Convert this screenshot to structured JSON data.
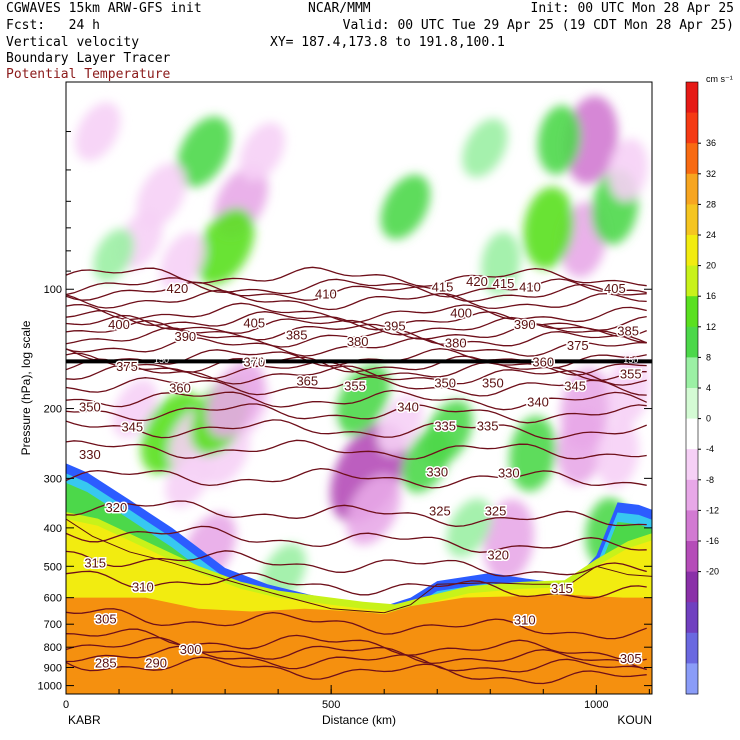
{
  "header": {
    "left1": "CGWAVES 15km ARW-GFS init",
    "left2": "Fcst:   24 h",
    "left3": "Vertical velocity",
    "left4": "Boundary Layer Tracer",
    "left5": "Potential Temperature",
    "center1": "NCAR/MMM",
    "init": "Init: 00 UTC Mon 28 Apr 25",
    "valid": "Valid: 00 UTC Tue 29 Apr 25 (19 CDT Mon 28 Apr 25)",
    "xy": "XY= 187.4,173.8 to 191.8,100.1"
  },
  "colors": {
    "theta_line": "#6e0f1a",
    "tracer_blue": "#2c5cff",
    "tracer_cyan": "#37c8f0",
    "surface_orange": "#f5900f",
    "surface_yellow": "#f2ec10"
  },
  "chart_data": {
    "type": "heatmap",
    "ylabel": "Pressure (hPa), log scale",
    "xlabel": "Distance (km)",
    "x_ticks": [
      "0",
      "500",
      "1000"
    ],
    "x_tick_values": [
      0,
      500,
      1000
    ],
    "xlim": [
      0,
      1105
    ],
    "y_ticks": [
      "100",
      "200",
      "300",
      "400",
      "500",
      "600",
      "700",
      "800",
      "900",
      "1000"
    ],
    "y_tick_values": [
      100,
      200,
      300,
      400,
      500,
      600,
      700,
      800,
      900,
      1000
    ],
    "ylim": [
      1050,
      30
    ],
    "y_scale": "log",
    "endpoints": [
      "KABR",
      "KOUN"
    ],
    "colorbar": {
      "unit": "cm s⁻¹",
      "labels": [
        "36",
        "32",
        "28",
        "24",
        "20",
        "16",
        "12",
        "8",
        "4",
        "0",
        "-4",
        "-8",
        "-12",
        "-16",
        "-20"
      ],
      "bin_colors": [
        "#e61a16",
        "#f53a14",
        "#f86a12",
        "#f7a520",
        "#f5c520",
        "#f2ec10",
        "#c8f21a",
        "#5ae020",
        "#4cd84a",
        "#9bf0a4",
        "#d4fbd4",
        "#ffffff",
        "#f6d0f6",
        "#e8a8e8",
        "#d27ad2",
        "#b54cb8",
        "#8a30a8",
        "#7040c0",
        "#6a68e0",
        "#8a9cf8"
      ]
    },
    "theta_labels": [
      {
        "text": "420",
        "x": 210,
        "p": 100
      },
      {
        "text": "410",
        "x": 490,
        "p": 103
      },
      {
        "text": "415",
        "x": 710,
        "p": 99
      },
      {
        "text": "420",
        "x": 775,
        "p": 96
      },
      {
        "text": "415",
        "x": 825,
        "p": 97
      },
      {
        "text": "410",
        "x": 875,
        "p": 99
      },
      {
        "text": "405",
        "x": 1035,
        "p": 100
      },
      {
        "text": "400",
        "x": 100,
        "p": 123
      },
      {
        "text": "390",
        "x": 225,
        "p": 132
      },
      {
        "text": "405",
        "x": 355,
        "p": 122
      },
      {
        "text": "385",
        "x": 435,
        "p": 131
      },
      {
        "text": "395",
        "x": 620,
        "p": 124
      },
      {
        "text": "400",
        "x": 745,
        "p": 115
      },
      {
        "text": "390",
        "x": 865,
        "p": 123
      },
      {
        "text": "385",
        "x": 1060,
        "p": 128
      },
      {
        "text": "380",
        "x": 550,
        "p": 136
      },
      {
        "text": "380",
        "x": 735,
        "p": 137
      },
      {
        "text": "375",
        "x": 965,
        "p": 139
      },
      {
        "text": "375",
        "x": 115,
        "p": 157
      },
      {
        "text": "370",
        "x": 355,
        "p": 153
      },
      {
        "text": "360",
        "x": 900,
        "p": 153
      },
      {
        "text": "365",
        "x": 455,
        "p": 171
      },
      {
        "text": "355",
        "x": 545,
        "p": 176
      },
      {
        "text": "350",
        "x": 715,
        "p": 173
      },
      {
        "text": "350",
        "x": 805,
        "p": 173
      },
      {
        "text": "355",
        "x": 1065,
        "p": 164
      },
      {
        "text": "360",
        "x": 215,
        "p": 178
      },
      {
        "text": "345",
        "x": 960,
        "p": 176
      },
      {
        "text": "340",
        "x": 890,
        "p": 193
      },
      {
        "text": "350",
        "x": 45,
        "p": 199
      },
      {
        "text": "340",
        "x": 645,
        "p": 199
      },
      {
        "text": "345",
        "x": 125,
        "p": 223
      },
      {
        "text": "335",
        "x": 715,
        "p": 222
      },
      {
        "text": "335",
        "x": 795,
        "p": 222
      },
      {
        "text": "330",
        "x": 45,
        "p": 262
      },
      {
        "text": "330",
        "x": 700,
        "p": 290
      },
      {
        "text": "330",
        "x": 835,
        "p": 292
      },
      {
        "text": "320",
        "x": 95,
        "p": 356
      },
      {
        "text": "325",
        "x": 705,
        "p": 364
      },
      {
        "text": "325",
        "x": 810,
        "p": 364
      },
      {
        "text": "320",
        "x": 815,
        "p": 470
      },
      {
        "text": "315",
        "x": 55,
        "p": 492
      },
      {
        "text": "310",
        "x": 145,
        "p": 565
      },
      {
        "text": "315",
        "x": 935,
        "p": 570
      },
      {
        "text": "305",
        "x": 75,
        "p": 682
      },
      {
        "text": "310",
        "x": 865,
        "p": 685
      },
      {
        "text": "300",
        "x": 235,
        "p": 812
      },
      {
        "text": "290",
        "x": 170,
        "p": 880
      },
      {
        "text": "285",
        "x": 75,
        "p": 880
      },
      {
        "text": "305",
        "x": 1065,
        "p": 856
      }
    ],
    "marker_labels": [
      {
        "text": "150",
        "x": 180,
        "p": 151
      },
      {
        "text": "150",
        "x": 360,
        "p": 151
      },
      {
        "text": "150",
        "x": 1065,
        "p": 151
      }
    ],
    "theta_levels": [
      285,
      290,
      295,
      300,
      305,
      310,
      315,
      320,
      325,
      330,
      335,
      340,
      345,
      350,
      355,
      360,
      365,
      370,
      375,
      380,
      385,
      390,
      395,
      400,
      405,
      410,
      415,
      420,
      425
    ],
    "theta_level_pressures": [
      920,
      870,
      830,
      790,
      700,
      560,
      495,
      430,
      370,
      300,
      255,
      226,
      205,
      190,
      176,
      165,
      160,
      155,
      149,
      140,
      133,
      128,
      124,
      120,
      115,
      107,
      102,
      99,
      93
    ],
    "tropopause_pressure": 152,
    "terrain_pressure": [
      [
        0,
        380
      ],
      [
        50,
        420
      ],
      [
        120,
        460
      ],
      [
        200,
        490
      ],
      [
        300,
        540
      ],
      [
        400,
        590
      ],
      [
        500,
        640
      ],
      [
        600,
        655
      ],
      [
        650,
        625
      ],
      [
        700,
        555
      ],
      [
        800,
        550
      ],
      [
        880,
        555
      ],
      [
        950,
        555
      ],
      [
        1000,
        500
      ],
      [
        1060,
        525
      ],
      [
        1105,
        530
      ]
    ],
    "blh_top_pressure": [
      [
        0,
        275
      ],
      [
        40,
        290
      ],
      [
        120,
        340
      ],
      [
        200,
        400
      ],
      [
        260,
        460
      ],
      [
        300,
        505
      ],
      [
        380,
        555
      ],
      [
        460,
        590
      ],
      [
        540,
        620
      ],
      [
        600,
        630
      ],
      [
        650,
        600
      ],
      [
        700,
        545
      ],
      [
        800,
        520
      ],
      [
        880,
        540
      ],
      [
        950,
        555
      ],
      [
        1000,
        470
      ],
      [
        1040,
        345
      ],
      [
        1080,
        350
      ],
      [
        1105,
        360
      ]
    ],
    "orange_top_pressure": [
      [
        0,
        600
      ],
      [
        150,
        600
      ],
      [
        250,
        640
      ],
      [
        350,
        650
      ],
      [
        450,
        640
      ],
      [
        550,
        650
      ],
      [
        600,
        660
      ],
      [
        650,
        630
      ],
      [
        750,
        600
      ],
      [
        850,
        595
      ],
      [
        950,
        590
      ],
      [
        1050,
        600
      ],
      [
        1105,
        600
      ]
    ],
    "yellow_top_pressure": [
      [
        0,
        380
      ],
      [
        60,
        395
      ],
      [
        150,
        450
      ],
      [
        250,
        520
      ],
      [
        330,
        570
      ],
      [
        400,
        600
      ],
      [
        480,
        620
      ],
      [
        560,
        640
      ],
      [
        620,
        650
      ],
      [
        680,
        620
      ],
      [
        760,
        585
      ],
      [
        860,
        570
      ],
      [
        940,
        565
      ],
      [
        1000,
        500
      ],
      [
        1060,
        450
      ],
      [
        1105,
        430
      ]
    ],
    "w_cells": [
      {
        "x": 330,
        "p": 60,
        "v": -10
      },
      {
        "x": 300,
        "p": 78,
        "v": 12
      },
      {
        "x": 260,
        "p": 45,
        "v": 10
      },
      {
        "x": 180,
        "p": 58,
        "v": -8
      },
      {
        "x": 140,
        "p": 75,
        "v": -6
      },
      {
        "x": 220,
        "p": 85,
        "v": -6
      },
      {
        "x": 370,
        "p": 45,
        "v": -6
      },
      {
        "x": 990,
        "p": 42,
        "v": -14
      },
      {
        "x": 975,
        "p": 75,
        "v": -10
      },
      {
        "x": 1035,
        "p": 62,
        "v": 10
      },
      {
        "x": 910,
        "p": 70,
        "v": 12
      },
      {
        "x": 1060,
        "p": 50,
        "v": -6
      },
      {
        "x": 790,
        "p": 44,
        "v": 6
      },
      {
        "x": 640,
        "p": 62,
        "v": 8
      },
      {
        "x": 820,
        "p": 86,
        "v": 6
      },
      {
        "x": 930,
        "p": 42,
        "v": 8
      },
      {
        "x": 60,
        "p": 40,
        "v": -6
      },
      {
        "x": 90,
        "p": 82,
        "v": 4
      },
      {
        "x": 460,
        "p": 60,
        "v": -4
      },
      {
        "x": 570,
        "p": 290,
        "v": -20
      },
      {
        "x": 580,
        "p": 360,
        "v": -10
      },
      {
        "x": 835,
        "p": 430,
        "v": -12
      },
      {
        "x": 880,
        "p": 260,
        "v": 10
      },
      {
        "x": 970,
        "p": 250,
        "v": -10
      },
      {
        "x": 1040,
        "p": 260,
        "v": -8
      },
      {
        "x": 300,
        "p": 260,
        "v": -8
      },
      {
        "x": 340,
        "p": 200,
        "v": -6
      },
      {
        "x": 230,
        "p": 300,
        "v": -6
      },
      {
        "x": 680,
        "p": 270,
        "v": 8
      },
      {
        "x": 760,
        "p": 400,
        "v": 6
      },
      {
        "x": 1020,
        "p": 410,
        "v": 8
      },
      {
        "x": 130,
        "p": 200,
        "v": -6
      },
      {
        "x": 470,
        "p": 240,
        "v": -4
      },
      {
        "x": 270,
        "p": 450,
        "v": -10
      },
      {
        "x": 410,
        "p": 520,
        "v": 6
      }
    ],
    "cloud_band": [
      {
        "x": 200,
        "p": 230,
        "v": 14
      },
      {
        "x": 240,
        "p": 240,
        "v": -8
      },
      {
        "x": 290,
        "p": 210,
        "v": 12
      },
      {
        "x": 320,
        "p": 190,
        "v": -12
      },
      {
        "x": 980,
        "p": 200,
        "v": -12
      },
      {
        "x": 1060,
        "p": 180,
        "v": -8
      },
      {
        "x": 560,
        "p": 190,
        "v": 10
      },
      {
        "x": 630,
        "p": 220,
        "v": -6
      },
      {
        "x": 720,
        "p": 230,
        "v": 8
      }
    ]
  }
}
